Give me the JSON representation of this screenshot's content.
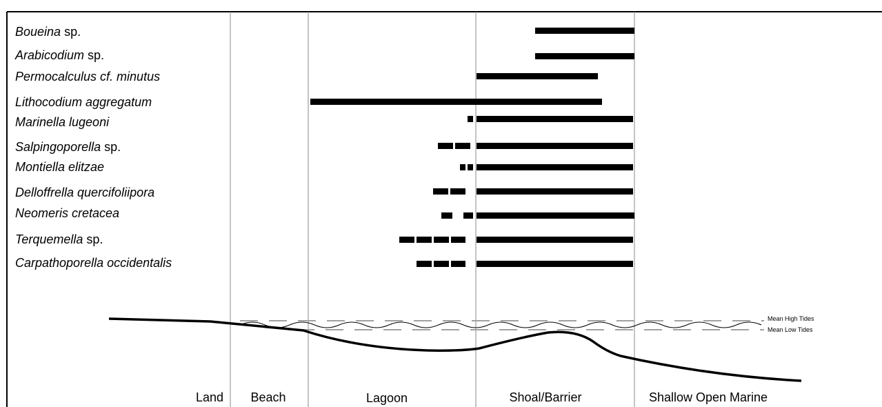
{
  "species": [
    {
      "parts": [
        {
          "text": "Boueina",
          "italic": true
        },
        {
          "text": " sp.",
          "italic": false
        }
      ]
    },
    {
      "parts": [
        {
          "text": "Arabicodium",
          "italic": true
        },
        {
          "text": " sp.",
          "italic": false
        }
      ]
    },
    {
      "parts": [
        {
          "text": "Permocalculus cf. minutus",
          "italic": true
        }
      ]
    },
    {
      "parts": [
        {
          "text": "Lithocodium aggregatum",
          "italic": true
        }
      ]
    },
    {
      "parts": [
        {
          "text": "Marinella lugeoni",
          "italic": true
        }
      ]
    },
    {
      "parts": [
        {
          "text": "Salpingoporella",
          "italic": true
        },
        {
          "text": " sp.",
          "italic": false
        }
      ]
    },
    {
      "parts": [
        {
          "text": "Montiella elitzae",
          "italic": true
        }
      ]
    },
    {
      "parts": [
        {
          "text": "Delloffrella quercifoliipora",
          "italic": true
        }
      ]
    },
    {
      "parts": [
        {
          "text": "Neomeris cretacea",
          "italic": true
        }
      ]
    },
    {
      "parts": [
        {
          "text": "Terquemella",
          "italic": true
        },
        {
          "text": " sp.",
          "italic": false
        }
      ]
    },
    {
      "parts": [
        {
          "text": "Carpathoporella occidentalis",
          "italic": true
        }
      ]
    }
  ],
  "zones": [
    "Land",
    "Beach",
    "Lagoon",
    "Shoal/Barrier",
    "Shallow Open Marine"
  ],
  "tides": {
    "high": "Mean High Tides",
    "low": "Mean Low Tides"
  },
  "colors": {
    "line": "#000000",
    "divider": "#888888",
    "tide_dash": "#a0a0a0"
  }
}
